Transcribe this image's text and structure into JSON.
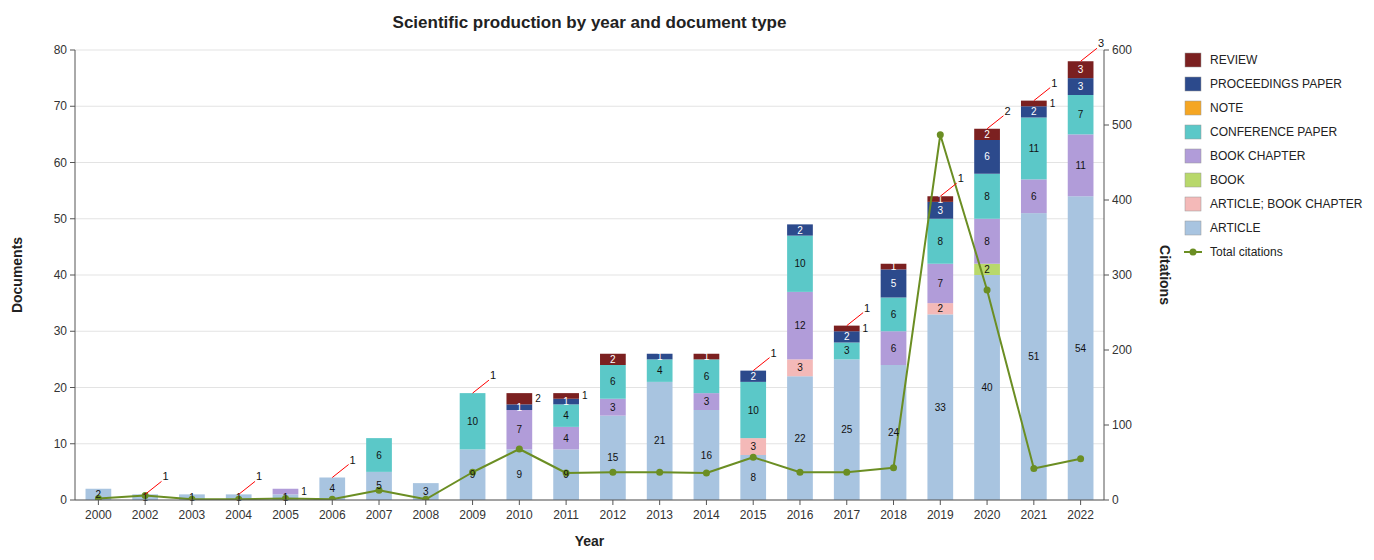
{
  "chart_data": {
    "type": "bar",
    "title": "Scientific production by year and document type",
    "xlabel": "Year",
    "ylabel": "Documents",
    "y2label": "Citations",
    "stacked": true,
    "grid": true,
    "legend": "right",
    "categories": [
      "2000",
      "2002",
      "2003",
      "2004",
      "2005",
      "2006",
      "2007",
      "2008",
      "2009",
      "2010",
      "2011",
      "2012",
      "2013",
      "2014",
      "2015",
      "2016",
      "2017",
      "2018",
      "2019",
      "2020",
      "2021",
      "2022"
    ],
    "series": [
      {
        "name": "ARTICLE",
        "type": "bar",
        "color": "#a8c4e0",
        "data_labels": true,
        "values": [
          2,
          1,
          1,
          1,
          1,
          4,
          5,
          3,
          9,
          9,
          9,
          15,
          21,
          16,
          8,
          22,
          25,
          24,
          33,
          40,
          51,
          54
        ]
      },
      {
        "name": "ARTICLE; BOOK CHAPTER",
        "type": "bar",
        "color": "#f4b9b8",
        "data_labels": true,
        "values": [
          0,
          0,
          0,
          0,
          0,
          0,
          0,
          0,
          0,
          0,
          0,
          0,
          0,
          0,
          3,
          3,
          0,
          0,
          2,
          0,
          0,
          0
        ]
      },
      {
        "name": "BOOK",
        "type": "bar",
        "color": "#b8d86b",
        "data_labels": true,
        "values": [
          0,
          0,
          0,
          0,
          0,
          0,
          0,
          0,
          0,
          0,
          0,
          0,
          0,
          0,
          0,
          0,
          0,
          0,
          0,
          2,
          0,
          0
        ]
      },
      {
        "name": "BOOK CHAPTER",
        "type": "bar",
        "color": "#b19cd9",
        "data_labels": true,
        "values": [
          0,
          0,
          0,
          0,
          1,
          0,
          0,
          0,
          0,
          7,
          4,
          3,
          0,
          3,
          0,
          12,
          0,
          6,
          7,
          8,
          6,
          11
        ]
      },
      {
        "name": "CONFERENCE PAPER",
        "type": "bar",
        "color": "#5bc8c8",
        "data_labels": true,
        "values": [
          0,
          0,
          0,
          0,
          0,
          0,
          6,
          0,
          10,
          0,
          4,
          6,
          4,
          6,
          10,
          10,
          3,
          6,
          8,
          8,
          11,
          7
        ]
      },
      {
        "name": "NOTE",
        "type": "bar",
        "color": "#f5a623",
        "data_labels": true,
        "values": [
          0,
          0,
          0,
          0,
          0,
          0,
          0,
          0,
          0,
          0,
          0,
          0,
          0,
          0,
          0,
          0,
          0,
          0,
          0,
          0,
          0,
          0
        ]
      },
      {
        "name": "PROCEEDINGS PAPER",
        "type": "bar",
        "color": "#2c4a8c",
        "data_labels": true,
        "values": [
          0,
          0,
          0,
          0,
          0,
          0,
          0,
          0,
          0,
          1,
          1,
          0,
          1,
          0,
          2,
          2,
          2,
          5,
          3,
          6,
          2,
          3
        ]
      },
      {
        "name": "REVIEW",
        "type": "bar",
        "color": "#7b2020",
        "data_labels": true,
        "values": [
          0,
          0,
          0,
          0,
          0,
          0,
          0,
          0,
          0,
          2,
          1,
          2,
          0,
          1,
          0,
          0,
          1,
          1,
          1,
          2,
          1,
          3
        ]
      },
      {
        "name": "Total citations",
        "type": "line",
        "axis": "y2",
        "color": "#6b8e23",
        "marker": "circle",
        "values": [
          2,
          6,
          1,
          1,
          2,
          1,
          13,
          1,
          37,
          68,
          36,
          37,
          37,
          36,
          57,
          37,
          37,
          43,
          487,
          280,
          42,
          55
        ]
      }
    ],
    "ylim": [
      0,
      80
    ],
    "yticks": [
      0,
      10,
      20,
      30,
      40,
      50,
      60,
      70,
      80
    ],
    "y2lim": [
      0,
      600
    ],
    "y2ticks": [
      0,
      100,
      200,
      300,
      400,
      500,
      600
    ],
    "annotations": [
      {
        "category": "2002",
        "text": "1"
      },
      {
        "category": "2004",
        "text": "1"
      },
      {
        "category": "2006",
        "text": "1"
      },
      {
        "category": "2009",
        "text": "1"
      },
      {
        "category": "2015",
        "text": "1"
      },
      {
        "category": "2017",
        "text": "1"
      },
      {
        "category": "2019",
        "text": "1"
      },
      {
        "category": "2020",
        "text": "2"
      },
      {
        "category": "2021",
        "text": "1"
      },
      {
        "category": "2022",
        "text": "3"
      }
    ]
  }
}
